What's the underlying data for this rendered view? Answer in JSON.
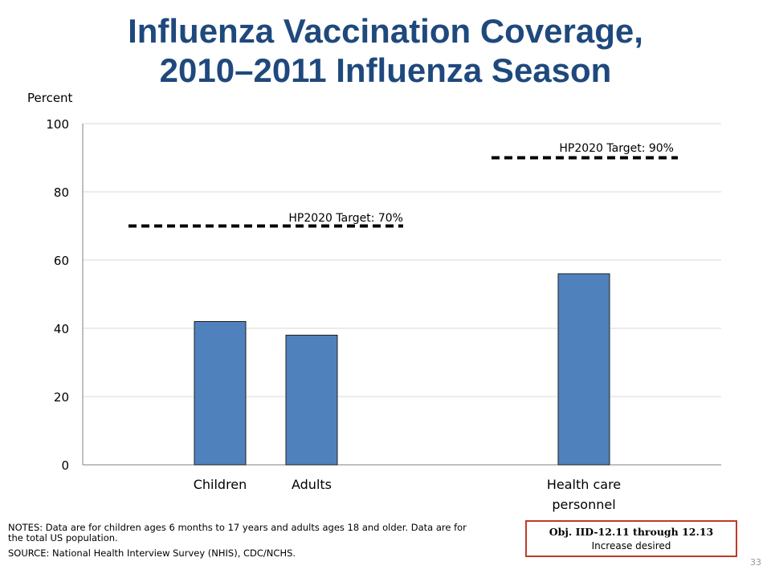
{
  "title_line1": "Influenza Vaccination Coverage,",
  "title_line2": "2010–2011 Influenza Season",
  "chart_data": {
    "type": "bar",
    "categories": [
      "Children",
      "Adults",
      "Health care personnel"
    ],
    "category_label_lines": [
      [
        "Children"
      ],
      [
        "Adults"
      ],
      [
        "Health care",
        "personnel"
      ]
    ],
    "values": [
      42,
      38,
      56
    ],
    "ylabel": "Percent",
    "xlabel": "",
    "ylim": [
      0,
      100
    ],
    "yticks": [
      0,
      20,
      40,
      60,
      80,
      100
    ],
    "grid": true,
    "bar_color": "#4f81bd",
    "targets": [
      {
        "label": "HP2020 Target: 70%",
        "value": 70,
        "applies_to": [
          "Children",
          "Adults"
        ]
      },
      {
        "label": "HP2020 Target: 90%",
        "value": 90,
        "applies_to": [
          "Health care personnel"
        ]
      }
    ]
  },
  "notes": "NOTES: Data are for children ages 6 months to 17 years and adults ages 18 and older. Data are for the total US population.",
  "source": "SOURCE: National Health Interview Survey (NHIS), CDC/NCHS.",
  "objective": {
    "title": "Obj. IID-12.11 through 12.13",
    "subtitle": "Increase desired"
  },
  "page_number": "33",
  "colors": {
    "title": "#1f497d",
    "bar": "#4f81bd",
    "objective_border": "#c0392b"
  }
}
